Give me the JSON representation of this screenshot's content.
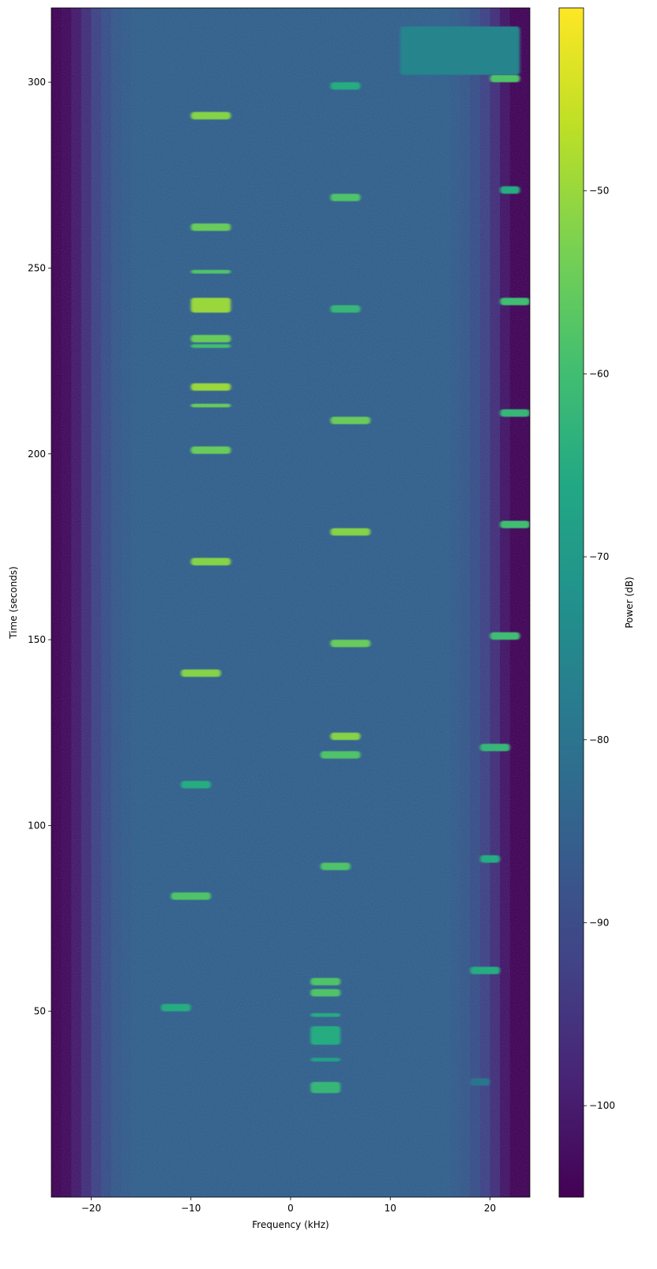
{
  "chart_data": {
    "type": "spectrogram",
    "xlabel": "Frequency (kHz)",
    "ylabel": "Time (seconds)",
    "colorbar_label": "Power (dB)",
    "colormap": "viridis",
    "xlim": [
      -24,
      24
    ],
    "ylim": [
      0,
      320
    ],
    "clim": [
      -105,
      -40
    ],
    "xticks": [
      {
        "value": -20,
        "label": "−20"
      },
      {
        "value": -10,
        "label": "−10"
      },
      0,
      10,
      20
    ],
    "yticks": [
      50,
      100,
      150,
      200,
      250,
      300
    ],
    "cticks": [
      {
        "value": -100,
        "label": "−100"
      },
      {
        "value": -90,
        "label": "−90"
      },
      {
        "value": -80,
        "label": "−80"
      },
      {
        "value": -70,
        "label": "−70"
      },
      {
        "value": -60,
        "label": "−60"
      },
      {
        "value": -50,
        "label": "−50"
      }
    ],
    "bins": [
      -24,
      -23,
      -22,
      -21,
      -20,
      -19,
      -18,
      -17,
      -16,
      -15,
      -14,
      -13,
      -12,
      -11,
      -10,
      -9,
      -8,
      -7,
      -6,
      -5,
      -4,
      -3,
      -2,
      -1,
      0,
      1,
      2,
      3,
      4,
      5,
      6,
      7,
      8,
      9,
      10,
      11,
      12,
      13,
      14,
      15,
      16,
      17,
      18,
      19,
      20,
      21,
      22,
      23,
      24
    ],
    "noise": [
      -104,
      -103,
      -100,
      -96,
      -92,
      -89,
      -87,
      -86,
      -85,
      -85,
      -85,
      -85,
      -85,
      -85,
      -85,
      -85,
      -85,
      -85,
      -85,
      -85,
      -85,
      -85,
      -85,
      -85,
      -85,
      -85,
      -85,
      -85,
      -85,
      -85,
      -85,
      -85,
      -85,
      -85,
      -85,
      -85,
      -85,
      -85,
      -85,
      -85,
      -86,
      -87,
      -89,
      -92,
      -96,
      -101,
      -104,
      -104
    ],
    "bursts": [
      {
        "f": [
          -10,
          -6
        ],
        "t": [
          290,
          292
        ],
        "power": -52
      },
      {
        "f": [
          -10,
          -6
        ],
        "t": [
          260,
          262
        ],
        "power": -55
      },
      {
        "f": [
          -10,
          -6
        ],
        "t": [
          248.5,
          249.5
        ],
        "power": -58
      },
      {
        "f": [
          -10,
          -6
        ],
        "t": [
          238,
          242
        ],
        "power": -50
      },
      {
        "f": [
          -10,
          -6
        ],
        "t": [
          230,
          232
        ],
        "power": -55
      },
      {
        "f": [
          -10,
          -6
        ],
        "t": [
          228.5,
          229.5
        ],
        "power": -60
      },
      {
        "f": [
          -10,
          -6
        ],
        "t": [
          217,
          219
        ],
        "power": -50
      },
      {
        "f": [
          -10,
          -6
        ],
        "t": [
          212.5,
          213.5
        ],
        "power": -55
      },
      {
        "f": [
          -10,
          -6
        ],
        "t": [
          200,
          202
        ],
        "power": -55
      },
      {
        "f": [
          -10,
          -6
        ],
        "t": [
          170,
          172
        ],
        "power": -52
      },
      {
        "f": [
          -11,
          -7
        ],
        "t": [
          140,
          142
        ],
        "power": -52
      },
      {
        "f": [
          -11,
          -8
        ],
        "t": [
          110,
          112
        ],
        "power": -65
      },
      {
        "f": [
          -12,
          -8
        ],
        "t": [
          80,
          82
        ],
        "power": -58
      },
      {
        "f": [
          -13,
          -10
        ],
        "t": [
          50,
          52
        ],
        "power": -65
      },
      {
        "f": [
          4,
          7
        ],
        "t": [
          298,
          300
        ],
        "power": -65
      },
      {
        "f": [
          4,
          7
        ],
        "t": [
          268,
          270
        ],
        "power": -58
      },
      {
        "f": [
          4,
          7
        ],
        "t": [
          238,
          240
        ],
        "power": -62
      },
      {
        "f": [
          4,
          8
        ],
        "t": [
          208,
          210
        ],
        "power": -55
      },
      {
        "f": [
          4,
          8
        ],
        "t": [
          178,
          180
        ],
        "power": -52
      },
      {
        "f": [
          4,
          8
        ],
        "t": [
          148,
          150
        ],
        "power": -55
      },
      {
        "f": [
          4,
          7
        ],
        "t": [
          123,
          125
        ],
        "power": -52
      },
      {
        "f": [
          3,
          7
        ],
        "t": [
          118,
          120
        ],
        "power": -58
      },
      {
        "f": [
          3,
          6
        ],
        "t": [
          88,
          90
        ],
        "power": -58
      },
      {
        "f": [
          2,
          5
        ],
        "t": [
          57,
          59
        ],
        "power": -58
      },
      {
        "f": [
          2,
          5
        ],
        "t": [
          54,
          56
        ],
        "power": -58
      },
      {
        "f": [
          2,
          5
        ],
        "t": [
          48.5,
          49.5
        ],
        "power": -65
      },
      {
        "f": [
          2,
          5
        ],
        "t": [
          41,
          46
        ],
        "power": -65
      },
      {
        "f": [
          2,
          5
        ],
        "t": [
          36.5,
          37.5
        ],
        "power": -68
      },
      {
        "f": [
          2,
          5
        ],
        "t": [
          28,
          31
        ],
        "power": -62
      },
      {
        "f": [
          20,
          23
        ],
        "t": [
          300,
          302
        ],
        "power": -58
      },
      {
        "f": [
          21,
          23
        ],
        "t": [
          270,
          272
        ],
        "power": -65
      },
      {
        "f": [
          21,
          24
        ],
        "t": [
          240,
          242
        ],
        "power": -60
      },
      {
        "f": [
          21,
          24
        ],
        "t": [
          210,
          212
        ],
        "power": -62
      },
      {
        "f": [
          21,
          24
        ],
        "t": [
          180,
          182
        ],
        "power": -60
      },
      {
        "f": [
          20,
          23
        ],
        "t": [
          150,
          152
        ],
        "power": -60
      },
      {
        "f": [
          19,
          22
        ],
        "t": [
          120,
          122
        ],
        "power": -62
      },
      {
        "f": [
          19,
          21
        ],
        "t": [
          90,
          92
        ],
        "power": -65
      },
      {
        "f": [
          18,
          21
        ],
        "t": [
          60,
          62
        ],
        "power": -65
      },
      {
        "f": [
          18,
          20
        ],
        "t": [
          30,
          32
        ],
        "power": -80
      },
      {
        "f": [
          11,
          23
        ],
        "t": [
          302,
          315
        ],
        "power": -76
      }
    ]
  }
}
